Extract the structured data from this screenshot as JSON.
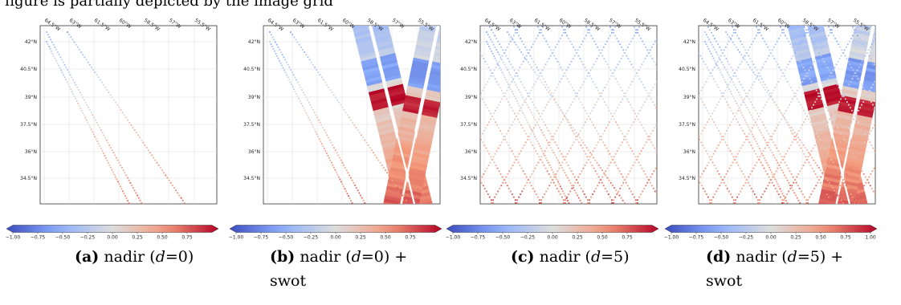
{
  "header": {
    "partial_text": "figure is partially depicted by the image grid"
  },
  "map": {
    "lon_ticks": [
      "64.5°W",
      "63°W",
      "61.5°W",
      "60°W",
      "58.5°W",
      "57°W",
      "55.5°W"
    ],
    "lat_ticks": [
      "42°N",
      "40.5°N",
      "39°N",
      "37.5°N",
      "36°N",
      "34.5°N"
    ]
  },
  "colorbar": {
    "ticks": [
      "−1.00",
      "−0.75",
      "−0.50",
      "−0.25",
      "0.00",
      "0.25",
      "0.50",
      "0.75"
    ],
    "ticks_last": [
      "−1.00",
      "−0.75",
      "−0.50",
      "−0.25",
      "0.00",
      "0.25",
      "0.50",
      "0.75",
      "1.00"
    ],
    "colormap": "coolwarm",
    "range": [
      -1,
      1
    ]
  },
  "panels": [
    {
      "label": "(a)",
      "text_before": "nadir (",
      "var": "d",
      "text_after": "=0)",
      "line2": ""
    },
    {
      "label": "(b)",
      "text_before": "nadir (",
      "var": "d",
      "text_after": "=0)  +",
      "line2": "swot"
    },
    {
      "label": "(c)",
      "text_before": "nadir (",
      "var": "d",
      "text_after": "=5)",
      "line2": ""
    },
    {
      "label": "(d)",
      "text_before": "nadir (",
      "var": "d",
      "text_after": "=5)  +",
      "line2": "swot"
    }
  ]
}
